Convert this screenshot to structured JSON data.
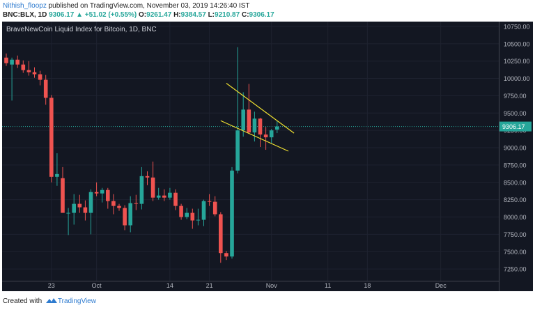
{
  "header": {
    "author": "Nithish_floopz",
    "published": "published on TradingView.com, November 03, 2019 14:26:40 IST",
    "symbol": "BNC:BLX, 1D",
    "last": "9306.17",
    "change": "+51.02 (+0.55%)",
    "open_label": "O:",
    "open": "9261.47",
    "high_label": "H:",
    "high": "9384.57",
    "low_label": "L:",
    "low": "9210.87",
    "close_label": "C:",
    "close": "9306.17"
  },
  "footer": {
    "created_with": "Created with",
    "brand": "TradingView"
  },
  "colors": {
    "up": "#26a69a",
    "down": "#ef5350",
    "trendline": "#f0e130",
    "background": "#131722",
    "axis_text": "#b2b5be"
  },
  "chart_data": {
    "type": "candlestick",
    "title": "BraveNewCoin Liquid Index for Bitcoin, 1D, BNC",
    "ylim": [
      7000,
      10850
    ],
    "y_ticks": [
      7250,
      7500,
      7750,
      8000,
      8250,
      8500,
      8750,
      9000,
      9250,
      9500,
      9750,
      10000,
      10250,
      10500,
      10750
    ],
    "y_tick_labels": [
      "7250.00",
      "7500.00",
      "7750.00",
      "8000.00",
      "8250.00",
      "8500.00",
      "8750.00",
      "9000.00",
      "9250.00",
      "9500.00",
      "9750.00",
      "10000.00",
      "10250.00",
      "10500.00",
      "10750.00"
    ],
    "x_tick_labels": [
      {
        "date": "2019-09-23",
        "label": "23"
      },
      {
        "date": "2019-10-01",
        "label": "Oct"
      },
      {
        "date": "2019-10-14",
        "label": "14"
      },
      {
        "date": "2019-10-21",
        "label": "21"
      },
      {
        "date": "2019-11-01",
        "label": "Nov"
      },
      {
        "date": "2019-11-11",
        "label": "11"
      },
      {
        "date": "2019-11-18",
        "label": "18"
      },
      {
        "date": "2019-12-01",
        "label": "Dec"
      }
    ],
    "last_price": 9306.17,
    "last_price_label": "9306.17",
    "candles": [
      {
        "date": "2019-09-15",
        "o": 10300,
        "h": 10360,
        "l": 10180,
        "c": 10220
      },
      {
        "date": "2019-09-16",
        "o": 10200,
        "h": 10300,
        "l": 9680,
        "c": 10270
      },
      {
        "date": "2019-09-17",
        "o": 10270,
        "h": 10330,
        "l": 10150,
        "c": 10200
      },
      {
        "date": "2019-09-18",
        "o": 10200,
        "h": 10260,
        "l": 10080,
        "c": 10120
      },
      {
        "date": "2019-09-19",
        "o": 10120,
        "h": 10250,
        "l": 10040,
        "c": 10090
      },
      {
        "date": "2019-09-20",
        "o": 10090,
        "h": 10160,
        "l": 10010,
        "c": 10060
      },
      {
        "date": "2019-09-21",
        "o": 10060,
        "h": 10110,
        "l": 9900,
        "c": 9980
      },
      {
        "date": "2019-09-22",
        "o": 9980,
        "h": 10050,
        "l": 9620,
        "c": 9720
      },
      {
        "date": "2019-09-23",
        "o": 9720,
        "h": 9760,
        "l": 8500,
        "c": 8580
      },
      {
        "date": "2019-09-24",
        "o": 8580,
        "h": 8920,
        "l": 8450,
        "c": 8620
      },
      {
        "date": "2019-09-25",
        "o": 8560,
        "h": 8720,
        "l": 8060,
        "c": 8060
      },
      {
        "date": "2019-09-26",
        "o": 8060,
        "h": 8130,
        "l": 7740,
        "c": 8060
      },
      {
        "date": "2019-09-27",
        "o": 8060,
        "h": 8330,
        "l": 7890,
        "c": 8190
      },
      {
        "date": "2019-09-28",
        "o": 8190,
        "h": 8320,
        "l": 8060,
        "c": 8140
      },
      {
        "date": "2019-09-29",
        "o": 8140,
        "h": 8240,
        "l": 7950,
        "c": 8060
      },
      {
        "date": "2019-09-30",
        "o": 8060,
        "h": 8400,
        "l": 7750,
        "c": 8360
      },
      {
        "date": "2019-10-01",
        "o": 8360,
        "h": 8500,
        "l": 8300,
        "c": 8340
      },
      {
        "date": "2019-10-02",
        "o": 8340,
        "h": 8420,
        "l": 8210,
        "c": 8390
      },
      {
        "date": "2019-10-03",
        "o": 8390,
        "h": 8420,
        "l": 8120,
        "c": 8230
      },
      {
        "date": "2019-10-04",
        "o": 8230,
        "h": 8330,
        "l": 8040,
        "c": 8160
      },
      {
        "date": "2019-10-05",
        "o": 8160,
        "h": 8190,
        "l": 8090,
        "c": 8130
      },
      {
        "date": "2019-10-06",
        "o": 8130,
        "h": 8170,
        "l": 7810,
        "c": 7880
      },
      {
        "date": "2019-10-07",
        "o": 7880,
        "h": 8300,
        "l": 7780,
        "c": 8200
      },
      {
        "date": "2019-10-08",
        "o": 8200,
        "h": 8320,
        "l": 8100,
        "c": 8190
      },
      {
        "date": "2019-10-09",
        "o": 8190,
        "h": 8720,
        "l": 8110,
        "c": 8590
      },
      {
        "date": "2019-10-10",
        "o": 8590,
        "h": 8660,
        "l": 8460,
        "c": 8570
      },
      {
        "date": "2019-10-11",
        "o": 8570,
        "h": 8800,
        "l": 8230,
        "c": 8280
      },
      {
        "date": "2019-10-12",
        "o": 8280,
        "h": 8420,
        "l": 8250,
        "c": 8310
      },
      {
        "date": "2019-10-13",
        "o": 8310,
        "h": 8400,
        "l": 8230,
        "c": 8280
      },
      {
        "date": "2019-10-14",
        "o": 8280,
        "h": 8420,
        "l": 8250,
        "c": 8350
      },
      {
        "date": "2019-10-15",
        "o": 8350,
        "h": 8400,
        "l": 8100,
        "c": 8160
      },
      {
        "date": "2019-10-16",
        "o": 8160,
        "h": 8190,
        "l": 7960,
        "c": 8000
      },
      {
        "date": "2019-10-17",
        "o": 8000,
        "h": 8130,
        "l": 7970,
        "c": 8060
      },
      {
        "date": "2019-10-18",
        "o": 8060,
        "h": 8120,
        "l": 7830,
        "c": 7950
      },
      {
        "date": "2019-10-19",
        "o": 7950,
        "h": 8120,
        "l": 7880,
        "c": 7960
      },
      {
        "date": "2019-10-20",
        "o": 7960,
        "h": 8250,
        "l": 7870,
        "c": 8230
      },
      {
        "date": "2019-10-21",
        "o": 8230,
        "h": 8330,
        "l": 8160,
        "c": 8220
      },
      {
        "date": "2019-10-22",
        "o": 8220,
        "h": 8300,
        "l": 8010,
        "c": 8040
      },
      {
        "date": "2019-10-23",
        "o": 8040,
        "h": 8070,
        "l": 7340,
        "c": 7480
      },
      {
        "date": "2019-10-24",
        "o": 7480,
        "h": 7510,
        "l": 7380,
        "c": 7430
      },
      {
        "date": "2019-10-25",
        "o": 7430,
        "h": 8720,
        "l": 7400,
        "c": 8670
      },
      {
        "date": "2019-10-26",
        "o": 8670,
        "h": 10450,
        "l": 8630,
        "c": 9250
      },
      {
        "date": "2019-10-27",
        "o": 9250,
        "h": 9800,
        "l": 9160,
        "c": 9550
      },
      {
        "date": "2019-10-28",
        "o": 9550,
        "h": 9920,
        "l": 9200,
        "c": 9220
      },
      {
        "date": "2019-10-29",
        "o": 9220,
        "h": 9520,
        "l": 9090,
        "c": 9420
      },
      {
        "date": "2019-10-30",
        "o": 9420,
        "h": 9430,
        "l": 9010,
        "c": 9190
      },
      {
        "date": "2019-10-31",
        "o": 9190,
        "h": 9300,
        "l": 8970,
        "c": 9150
      },
      {
        "date": "2019-11-01",
        "o": 9150,
        "h": 9270,
        "l": 9060,
        "c": 9250
      },
      {
        "date": "2019-11-02",
        "o": 9261.47,
        "h": 9384.57,
        "l": 9210.87,
        "c": 9306.17
      }
    ],
    "trendlines": [
      {
        "from": {
          "date": "2019-10-24",
          "value": 9930
        },
        "to": {
          "date": "2019-11-05",
          "value": 9210
        }
      },
      {
        "from": {
          "date": "2019-10-23",
          "value": 9390
        },
        "to": {
          "date": "2019-11-04",
          "value": 8950
        }
      }
    ]
  }
}
